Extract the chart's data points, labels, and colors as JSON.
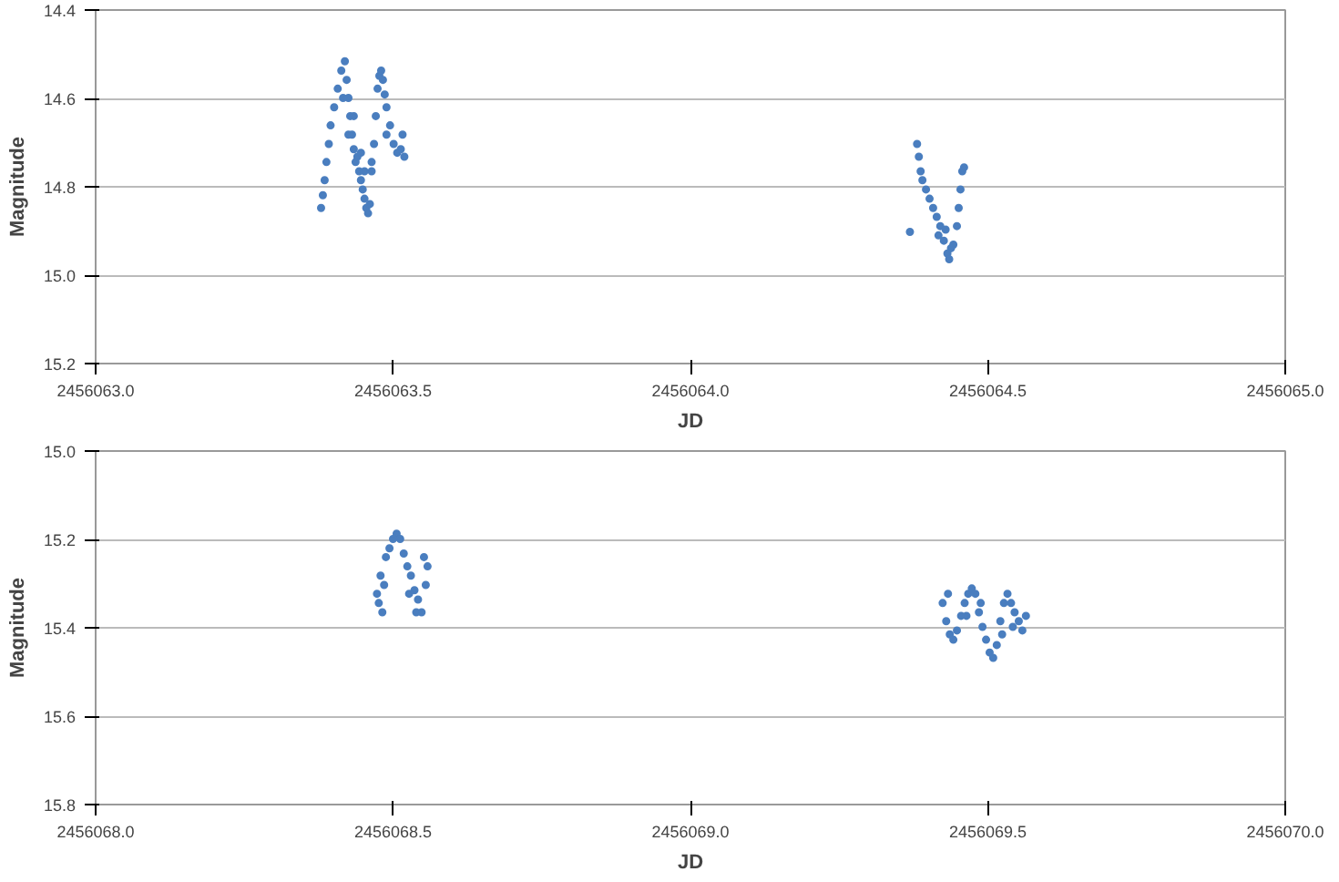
{
  "chart_data": [
    {
      "type": "scatter",
      "xlabel": "JD",
      "ylabel": "Magnitude",
      "grid": "y",
      "marker": "circle",
      "xlim": [
        2456063.0,
        2456065.0
      ],
      "ylim": [
        15.2,
        14.4
      ],
      "xticks": [
        {
          "value": 2456063.0,
          "label": "2456063.0"
        },
        2456063.5,
        {
          "value": 2456064.0,
          "label": "2456064.0"
        },
        2456064.5,
        {
          "value": 2456065.0,
          "label": "2456065.0"
        }
      ],
      "yticks": [
        14.4,
        14.6,
        14.8,
        {
          "value": 15.0,
          "label": "15.0"
        },
        15.2
      ],
      "series": [
        {
          "color": "#4a7ebf",
          "x": [
            2456063.379,
            2456063.382,
            2456063.385,
            2456063.388,
            2456063.392,
            2456063.395,
            2456063.401,
            2456063.407,
            2456063.413,
            2456063.419,
            2456063.422,
            2456063.425,
            2456063.428,
            2456063.431,
            2456063.434,
            2456063.437,
            2456063.44,
            2456063.443,
            2456063.446,
            2456063.449,
            2456063.452,
            2456063.455,
            2456063.458,
            2456063.461,
            2456063.464,
            2456063.468,
            2456063.471,
            2456063.474,
            2456063.477,
            2456063.48,
            2456063.483,
            2456063.486,
            2456063.489,
            2456063.495,
            2456063.501,
            2456063.507,
            2456063.513,
            2456063.519,
            2456063.416,
            2456063.425,
            2456063.434,
            2456063.446,
            2456063.452,
            2456063.464,
            2456063.489,
            2456063.516,
            2456064.381,
            2456064.384,
            2456064.387,
            2456064.39,
            2456064.396,
            2456064.402,
            2456064.408,
            2456064.414,
            2456064.42,
            2456064.426,
            2456064.432,
            2456064.435,
            2456064.442,
            2456064.448,
            2456064.451,
            2456064.454,
            2456064.457,
            2456064.46,
            2456064.369,
            2456064.417,
            2456064.438,
            2456064.429
          ],
          "values": [
            14.848,
            14.819,
            14.785,
            14.744,
            14.703,
            14.661,
            14.62,
            14.578,
            14.537,
            14.516,
            14.558,
            14.599,
            14.64,
            14.682,
            14.715,
            14.744,
            14.732,
            14.765,
            14.785,
            14.806,
            14.827,
            14.848,
            14.86,
            14.839,
            14.765,
            14.703,
            14.64,
            14.578,
            14.549,
            14.537,
            14.558,
            14.591,
            14.62,
            14.661,
            14.703,
            14.723,
            14.715,
            14.732,
            14.599,
            14.682,
            14.64,
            14.723,
            14.765,
            14.744,
            14.682,
            14.682,
            14.703,
            14.732,
            14.765,
            14.785,
            14.806,
            14.827,
            14.848,
            14.868,
            14.889,
            14.922,
            14.951,
            14.964,
            14.931,
            14.889,
            14.848,
            14.806,
            14.765,
            14.756,
            14.902,
            14.91,
            14.939,
            14.897
          ]
        }
      ]
    },
    {
      "type": "scatter",
      "xlabel": "JD",
      "ylabel": "Magnitude",
      "grid": "y",
      "marker": "circle",
      "xlim": [
        2456068.0,
        2456070.0
      ],
      "ylim": [
        15.8,
        15.0
      ],
      "xticks": [
        {
          "value": 2456068.0,
          "label": "2456068.0"
        },
        2456068.5,
        {
          "value": 2456069.0,
          "label": "2456069.0"
        },
        2456069.5,
        {
          "value": 2456070.0,
          "label": "2456070.0"
        }
      ],
      "yticks": [
        {
          "value": 15.0,
          "label": "15.0"
        },
        15.2,
        15.4,
        15.6,
        15.8
      ],
      "series": [
        {
          "color": "#4a7ebf",
          "x": [
            2456068.473,
            2456068.476,
            2456068.482,
            2456068.479,
            2456068.488,
            2456068.494,
            2456068.5,
            2456068.506,
            2456068.512,
            2456068.518,
            2456068.524,
            2456068.53,
            2456068.536,
            2456068.542,
            2456068.548,
            2456068.555,
            2456068.558,
            2456068.552,
            2456068.485,
            2456068.527,
            2456068.539,
            2456069.424,
            2456069.43,
            2456069.436,
            2456069.442,
            2456069.448,
            2456069.455,
            2456069.461,
            2456069.467,
            2456069.473,
            2456069.479,
            2456069.485,
            2456069.491,
            2456069.497,
            2456069.503,
            2456069.509,
            2456069.515,
            2456069.521,
            2456069.527,
            2456069.533,
            2456069.539,
            2456069.545,
            2456069.552,
            2456069.558,
            2456069.564,
            2456069.433,
            2456069.464,
            2456069.488,
            2456069.524,
            2456069.542
          ],
          "values": [
            15.323,
            15.344,
            15.365,
            15.282,
            15.24,
            15.22,
            15.199,
            15.187,
            15.199,
            15.232,
            15.261,
            15.282,
            15.315,
            15.336,
            15.365,
            15.303,
            15.261,
            15.24,
            15.303,
            15.323,
            15.365,
            15.344,
            15.385,
            15.415,
            15.427,
            15.406,
            15.373,
            15.344,
            15.323,
            15.311,
            15.323,
            15.365,
            15.398,
            15.427,
            15.456,
            15.468,
            15.439,
            15.385,
            15.344,
            15.323,
            15.344,
            15.365,
            15.385,
            15.406,
            15.373,
            15.323,
            15.373,
            15.344,
            15.415,
            15.398
          ]
        }
      ]
    }
  ]
}
